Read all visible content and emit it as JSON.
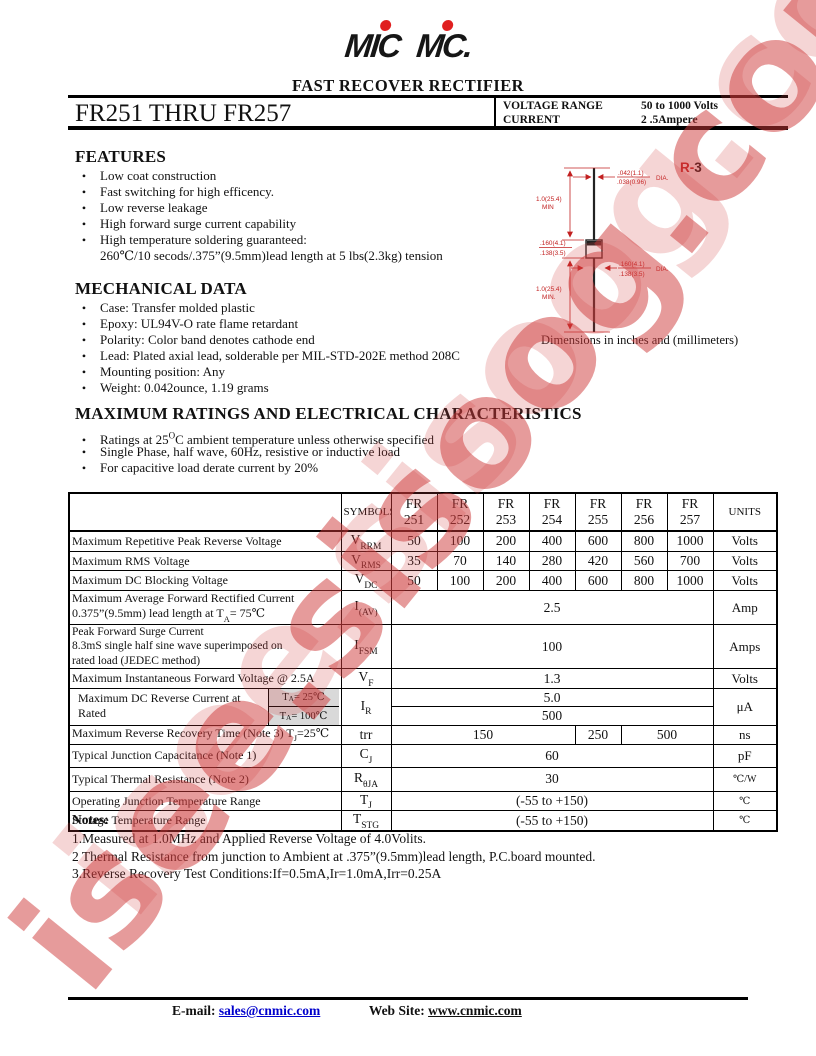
{
  "watermark": {
    "text": "isee.sisoog.com"
  },
  "header": {
    "logo_part1": "MIC",
    "logo_part2": "MC.",
    "subtitle": "FAST RECOVER RECTIFIER"
  },
  "title_bar": {
    "part_range": "FR251 THRU FR257",
    "voltage_range_label": "VOLTAGE RANGE",
    "voltage_range_value": "50 to 1000 Volts",
    "current_label": "CURRENT",
    "current_value": "2 .5Ampere"
  },
  "features": {
    "heading": "FEATURES",
    "items": [
      "Low coat construction",
      "Fast switching for high efficency.",
      "Low reverse leakage",
      "High forward surge current capability",
      "High temperature soldering guaranteed:"
    ],
    "item5_line2": "260℃/10 secods/.375”(9.5mm)lead length at 5 lbs(2.3kg) tension"
  },
  "mechanical": {
    "heading": "MECHANICAL DATA",
    "items": [
      "Case: Transfer molded plastic",
      "Epoxy: UL94V-O rate flame retardant",
      "Polarity: Color band denotes cathode end",
      "Lead: Plated axial lead, solderable per MIL-STD-202E method 208C",
      "Mounting position: Any",
      "Weight:  0.042ounce, 1.19 grams"
    ]
  },
  "ratings_section": {
    "heading": "MAXIMUM RATINGS AND ELECTRICAL CHARACTERISTICS",
    "items": [
      "Ratings at 25^O^C ambient temperature unless otherwise specified",
      "Single Phase, half wave, 60Hz, resistive or inductive load",
      "For capacitive load derate current by 20%"
    ]
  },
  "diagram": {
    "pkg_prefix": "R-",
    "pkg_number": "3",
    "top_dia_1": ".042(1.1)",
    "top_dia_2": ".038(0.96)",
    "dia_label_top": "DIA.",
    "lead_len_top": "1.0(25.4)",
    "lead_min_top": "MIN",
    "body_len_1": ".160(4.1)",
    "body_len_2": ".138(3.5)",
    "body_dia_1": ".160(4.1)",
    "body_dia_2": ".138(3.5)",
    "dia_label_body": "DIA.",
    "lead_len_bot": "1.0(25.4)",
    "lead_min_bot": "MIN.",
    "caption": "Dimensions in inches and (millimeters)"
  },
  "table": {
    "symbols_header": "SYMBOLS",
    "units_header": "UNITS",
    "parts": [
      {
        "l1": "FR",
        "l2": "251"
      },
      {
        "l1": "FR",
        "l2": "252"
      },
      {
        "l1": "FR",
        "l2": "253"
      },
      {
        "l1": "FR",
        "l2": "254"
      },
      {
        "l1": "FR",
        "l2": "255"
      },
      {
        "l1": "FR",
        "l2": "256"
      },
      {
        "l1": "FR",
        "l2": "257"
      }
    ],
    "rows": [
      {
        "desc": "Maximum Repetitive Peak Reverse Voltage",
        "symbol": "V~RRM~",
        "values": [
          "50",
          "100",
          "200",
          "400",
          "600",
          "800",
          "1000"
        ],
        "unit": "Volts"
      },
      {
        "desc": "Maximum RMS Voltage",
        "symbol": "V~RMS~",
        "values": [
          "35",
          "70",
          "140",
          "280",
          "420",
          "560",
          "700"
        ],
        "unit": "Volts"
      },
      {
        "desc": "Maximum DC Blocking Voltage",
        "symbol": "V~DC~",
        "values": [
          "50",
          "100",
          "200",
          "400",
          "600",
          "800",
          "1000"
        ],
        "unit": "Volts"
      },
      {
        "desc_l1": "Maximum Average Forward Rectified Current",
        "desc_l2": "0.375”(9.5mm) lead length at T~A~= 75℃",
        "symbol": "I~(AV)~",
        "value": "2.5",
        "unit": "Amp"
      },
      {
        "desc_l1": "Peak Forward Surge Current",
        "desc_l2": "8.3mS single half sine wave superimposed on",
        "desc_l3": "rated load (JEDEC method)",
        "symbol": "I~FSM~",
        "value": "100",
        "unit": "Amps"
      },
      {
        "desc": "Maximum Instantaneous Forward Voltage @ 2.5A",
        "symbol": "V~F~",
        "value": "1.3",
        "unit": "Volts"
      },
      {
        "desc_l1": "Maximum DC Reverse Current at Rated",
        "desc_l2": "DC Blocking Voltage",
        "cond_1": "T~A~ = 25℃",
        "cond_2": "T~A~ = 100℃",
        "symbol": "I~R~",
        "value_1": "5.0",
        "value_2": "500",
        "unit": "μA"
      },
      {
        "desc": "Maximum Reverse Recovery Time (Note 3) T~J~=25℃",
        "symbol": "trr",
        "value_a": "150",
        "value_b": "250",
        "value_c": "500",
        "unit": "ns"
      },
      {
        "desc": "Typical Junction Capacitance (Note 1)",
        "symbol": "C~J~",
        "value": "60",
        "unit": "pF"
      },
      {
        "desc": "Typical Thermal Resistance (Note 2)",
        "symbol": "R~θJA~",
        "value": "30",
        "unit": "℃/W"
      },
      {
        "desc": "Operating Junction Temperature Range",
        "symbol": "T~J~",
        "value": "(-55 to +150)",
        "unit": "℃"
      },
      {
        "desc": "Storage Temperature Range",
        "symbol": "T~STG~",
        "value": "(-55 to +150)",
        "unit": "℃"
      }
    ]
  },
  "notes": {
    "heading": "Notes:",
    "items": [
      "1.Measured at 1.0MHz and Applied Reverse Voltage of 4.0Volits.",
      "2 Thermal Resistance from junction to Ambient at .375”(9.5mm)lead length, P.C.board mounted.",
      "3.Reverse Recovery Test Conditions:If=0.5mA,Ir=1.0mA,Irr=0.25A"
    ]
  },
  "footer": {
    "email_label": "E-mail:",
    "email": "sales@cnmic.com",
    "web_label": "Web Site:",
    "web": "www.cnmic.com"
  }
}
